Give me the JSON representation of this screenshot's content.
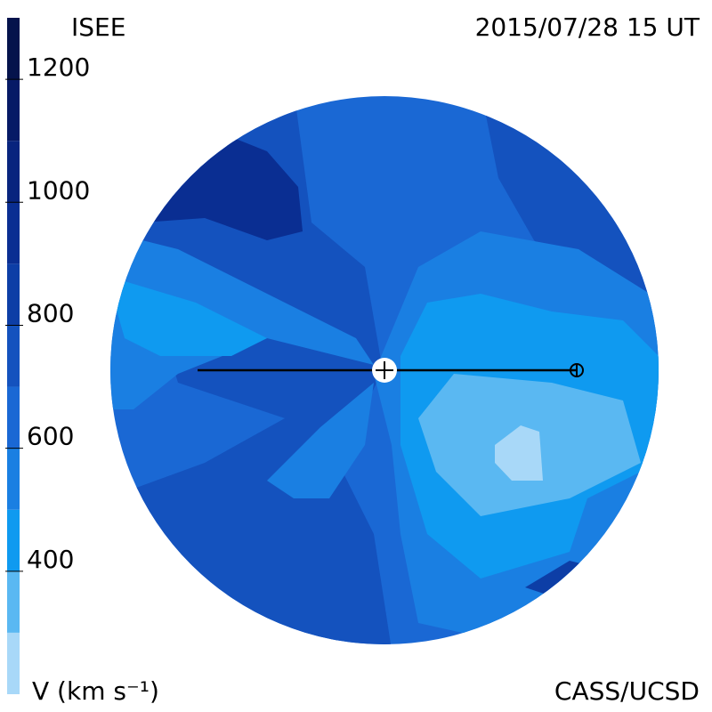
{
  "header": {
    "title": "ISEE",
    "timestamp": "2015/07/28 15 UT",
    "credit": "CASS/UCSD"
  },
  "colorbar": {
    "label": "V (km s⁻¹)",
    "range": [
      200,
      1300
    ],
    "boundaries": [
      200,
      300,
      400,
      500,
      600,
      700,
      800,
      900,
      1000,
      1100,
      1200,
      1300
    ],
    "colors": [
      "#a8d8f8",
      "#5ab8f2",
      "#0f9af0",
      "#1a7fe2",
      "#1a68d4",
      "#1452be",
      "#0d3ea6",
      "#0a2e92",
      "#08247e",
      "#061a66",
      "#05134c"
    ],
    "ticks": [
      400,
      600,
      800,
      1000,
      1200
    ]
  }
}
